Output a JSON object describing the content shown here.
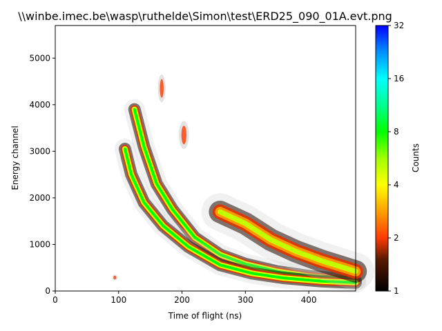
{
  "chart_data": {
    "type": "heatmap",
    "title": "\\\\winbe.imec.be\\wasp\\ruthelde\\Simon\\test\\ERD25_090_01A.evt.png",
    "xlabel": "Time of flight (ns)",
    "ylabel": "Energy channel",
    "xlim": [
      0,
      474
    ],
    "ylim": [
      0,
      5700
    ],
    "xticks": [
      0,
      100,
      200,
      300,
      400
    ],
    "yticks": [
      0,
      1000,
      2000,
      3000,
      4000,
      5000
    ],
    "colorbar": {
      "label": "Counts",
      "scale": "log",
      "range": [
        1,
        32
      ],
      "ticks": [
        1,
        2,
        4,
        8,
        16,
        32
      ]
    },
    "features": [
      {
        "kind": "curve",
        "points": [
          [
            125,
            3900
          ],
          [
            140,
            3100
          ],
          [
            160,
            2300
          ],
          [
            185,
            1750
          ],
          [
            220,
            1150
          ],
          [
            260,
            780
          ],
          [
            300,
            580
          ],
          [
            350,
            420
          ],
          [
            400,
            320
          ],
          [
            474,
            230
          ]
        ],
        "peak_counts": 8
      },
      {
        "kind": "curve",
        "points": [
          [
            110,
            3050
          ],
          [
            120,
            2500
          ],
          [
            140,
            1900
          ],
          [
            170,
            1400
          ],
          [
            210,
            950
          ],
          [
            260,
            560
          ],
          [
            310,
            380
          ],
          [
            360,
            280
          ],
          [
            420,
            210
          ],
          [
            474,
            180
          ]
        ],
        "peak_counts": 8
      },
      {
        "kind": "band",
        "points": [
          [
            260,
            1700
          ],
          [
            300,
            1450
          ],
          [
            340,
            1100
          ],
          [
            380,
            850
          ],
          [
            420,
            650
          ],
          [
            474,
            420
          ]
        ],
        "peak_counts": 5
      },
      {
        "kind": "blob",
        "center": [
          168,
          4350
        ],
        "spread": [
          3,
          250
        ],
        "peak_counts": 2
      },
      {
        "kind": "blob",
        "center": [
          203,
          3350
        ],
        "spread": [
          4,
          250
        ],
        "peak_counts": 2
      },
      {
        "kind": "blob",
        "center": [
          94,
          290
        ],
        "spread": [
          2,
          50
        ],
        "peak_counts": 2
      }
    ]
  }
}
